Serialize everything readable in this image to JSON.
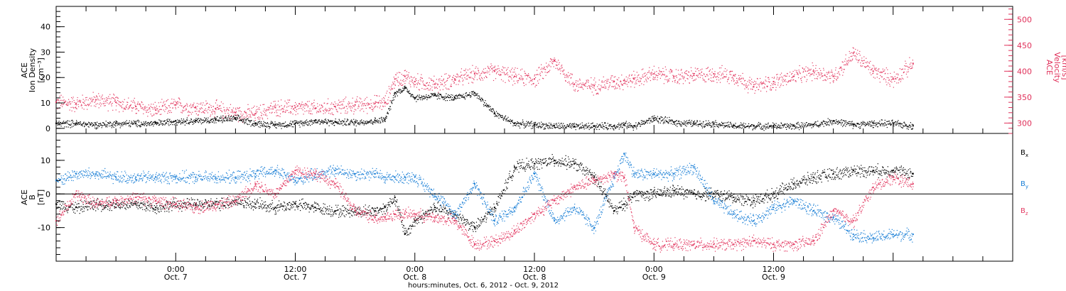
{
  "colors": {
    "black": "#000000",
    "red": "#e33b63",
    "blue": "#1a7fd6",
    "axis_right": "#e0305a"
  },
  "chart_data": [
    {
      "type": "scatter",
      "panel": "top",
      "ylabel": [
        "ACE",
        "Ion Density",
        "[cm⁻³]"
      ],
      "ylim": [
        -2,
        48
      ],
      "yticks": [
        0,
        10,
        20,
        30,
        40
      ],
      "right_axis": {
        "ylabel": [
          "ACE",
          "Velocity",
          "[km/s]"
        ],
        "ylim": [
          280,
          525
        ],
        "yticks": [
          300,
          350,
          400,
          450,
          500
        ]
      },
      "xlim_hours": [
        0,
        96
      ],
      "series": [
        {
          "key": "density",
          "color": "black",
          "x": [
            0,
            2,
            4,
            6,
            8,
            10,
            12,
            14,
            16,
            18,
            20,
            22,
            24,
            26,
            28,
            30,
            32,
            33,
            34,
            35,
            36,
            38,
            40,
            42,
            44,
            46,
            48,
            50,
            52,
            54,
            56,
            57,
            58,
            60,
            62,
            64,
            66,
            68,
            70,
            72,
            74,
            76,
            78,
            80,
            82,
            84,
            86
          ],
          "y": [
            2,
            2,
            1.5,
            2,
            2,
            2,
            3,
            3,
            3.5,
            4,
            2,
            1.5,
            2,
            3,
            2.5,
            2.5,
            3,
            3.5,
            14,
            16,
            12,
            13,
            12,
            14,
            6,
            2,
            1.5,
            1,
            0.8,
            1,
            1,
            1.5,
            1,
            4,
            2.5,
            2,
            2,
            1,
            1,
            1,
            1,
            1.5,
            3,
            1.5,
            2,
            2,
            1
          ]
        },
        {
          "key": "velocity",
          "color": "red",
          "x": [
            0,
            2,
            4,
            6,
            8,
            10,
            12,
            14,
            16,
            18,
            20,
            22,
            24,
            26,
            28,
            30,
            32,
            33,
            34,
            35,
            36,
            38,
            40,
            42,
            44,
            46,
            48,
            50,
            52,
            54,
            56,
            57,
            58,
            60,
            62,
            64,
            66,
            68,
            70,
            72,
            74,
            76,
            78,
            80,
            82,
            84,
            86
          ],
          "y": [
            340,
            338,
            345,
            340,
            332,
            325,
            335,
            330,
            328,
            320,
            318,
            330,
            330,
            328,
            332,
            335,
            338,
            340,
            385,
            390,
            380,
            375,
            385,
            395,
            400,
            390,
            385,
            420,
            375,
            372,
            380,
            382,
            385,
            395,
            390,
            392,
            395,
            392,
            370,
            380,
            390,
            400,
            390,
            435,
            400,
            385,
            415
          ]
        }
      ]
    },
    {
      "type": "scatter",
      "panel": "bottom",
      "ylabel": [
        "ACE",
        "B",
        "[nT]"
      ],
      "ylim": [
        -20,
        18
      ],
      "yticks": [
        -10,
        0,
        10
      ],
      "xlim_hours": [
        0,
        96
      ],
      "xticks": [
        {
          "h": 12,
          "time": "0:00",
          "date": "Oct. 7"
        },
        {
          "h": 24,
          "time": "12:00",
          "date": "Oct. 7"
        },
        {
          "h": 36,
          "time": "0:00",
          "date": "Oct. 8"
        },
        {
          "h": 48,
          "time": "12:00",
          "date": "Oct. 8"
        },
        {
          "h": 60,
          "time": "0:00",
          "date": "Oct. 9"
        },
        {
          "h": 72,
          "time": "12:00",
          "date": "Oct. 9"
        }
      ],
      "xlabel": "hours:minutes, Oct.  6, 2012 - Oct.  9, 2012",
      "series": [
        {
          "name": "Bx",
          "color": "black",
          "x": [
            0,
            2,
            4,
            6,
            8,
            10,
            12,
            14,
            16,
            18,
            20,
            22,
            24,
            26,
            28,
            30,
            32,
            33,
            34,
            35,
            36,
            38,
            40,
            42,
            44,
            46,
            48,
            50,
            52,
            54,
            56,
            57,
            58,
            60,
            62,
            64,
            66,
            68,
            70,
            72,
            74,
            76,
            78,
            80,
            82,
            84,
            86
          ],
          "y": [
            -3,
            -4,
            -3,
            -3,
            -3,
            -4,
            -3,
            -3,
            -3,
            -2,
            -3,
            -4,
            -3,
            -4,
            -5,
            -5,
            -5,
            -4,
            -1,
            -12,
            -8,
            -4,
            -6,
            -10,
            -4,
            8,
            9,
            10,
            9,
            5,
            -5,
            -3,
            0,
            0,
            1,
            0,
            0,
            -1,
            -2,
            0,
            3,
            5,
            6,
            7,
            7,
            7,
            6
          ]
        },
        {
          "name": "By",
          "color": "blue",
          "x": [
            0,
            2,
            4,
            6,
            8,
            10,
            12,
            14,
            16,
            18,
            20,
            22,
            24,
            26,
            28,
            30,
            32,
            33,
            34,
            35,
            36,
            38,
            40,
            42,
            44,
            46,
            48,
            50,
            52,
            54,
            56,
            57,
            58,
            60,
            62,
            64,
            66,
            68,
            70,
            72,
            74,
            76,
            78,
            80,
            82,
            84,
            86
          ],
          "y": [
            4,
            6,
            6,
            5,
            5,
            5,
            5,
            5,
            5,
            5,
            6,
            7,
            4,
            6,
            7,
            6,
            6,
            5,
            5,
            5,
            5,
            0,
            -6,
            3,
            -8,
            -4,
            6,
            -8,
            -4,
            -10,
            5,
            12,
            6,
            6,
            6,
            8,
            -2,
            -6,
            -8,
            -4,
            -2,
            -5,
            -7,
            -12,
            -13,
            -12,
            -12
          ]
        },
        {
          "name": "Bz",
          "color": "red",
          "x": [
            0,
            2,
            4,
            6,
            8,
            10,
            12,
            14,
            16,
            18,
            20,
            22,
            24,
            26,
            28,
            30,
            32,
            33,
            34,
            35,
            36,
            38,
            40,
            42,
            44,
            46,
            48,
            50,
            52,
            54,
            56,
            57,
            58,
            60,
            62,
            64,
            66,
            68,
            70,
            72,
            74,
            76,
            78,
            80,
            82,
            84,
            86
          ],
          "y": [
            -8,
            0,
            -3,
            -2,
            -1,
            -2,
            -3,
            -4,
            -3,
            -2,
            3,
            0,
            7,
            6,
            3,
            -5,
            -7,
            -7,
            -6,
            -6,
            -6,
            -7,
            -8,
            -15,
            -14,
            -11,
            -6,
            -2,
            2,
            4,
            6,
            5,
            -10,
            -15,
            -15,
            -15,
            -15,
            -15,
            -14,
            -15,
            -15,
            -14,
            -5,
            -8,
            2,
            5,
            3
          ]
        }
      ]
    }
  ],
  "legend": {
    "bx": "B",
    "bx_sub": "x",
    "by": "B",
    "by_sub": "y",
    "bz": "B",
    "bz_sub": "z"
  },
  "noise": {
    "density_spread": 1.2,
    "velocity_spread": 14,
    "b_spread": 1.6,
    "points_per_hour": 28
  }
}
